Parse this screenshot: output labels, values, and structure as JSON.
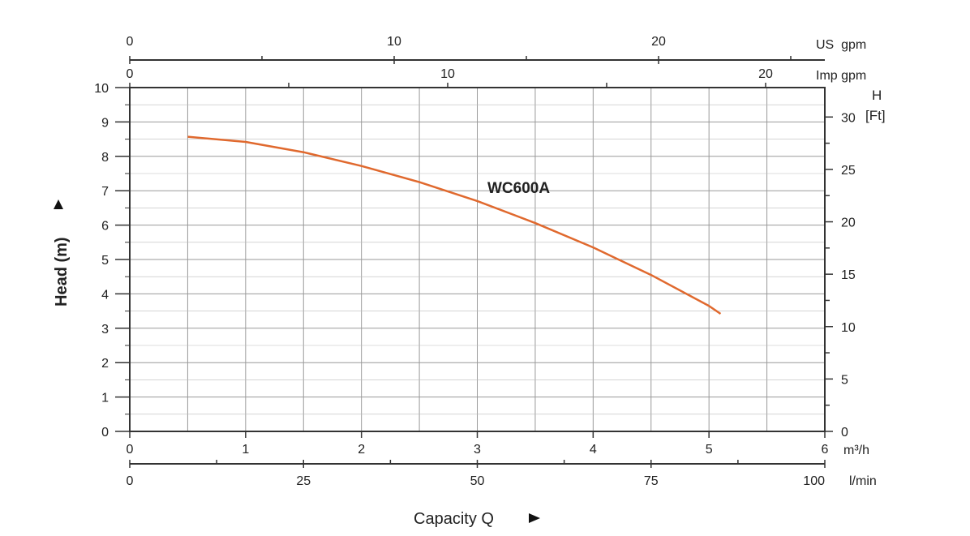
{
  "chart_data": {
    "type": "line",
    "series": [
      {
        "name": "WC600A",
        "color": "#e0692e",
        "x": [
          0.5,
          1.0,
          1.5,
          2.0,
          2.5,
          3.0,
          3.5,
          4.0,
          4.5,
          5.0,
          5.1
        ],
        "y": [
          8.57,
          8.42,
          8.12,
          7.72,
          7.25,
          6.7,
          6.06,
          5.35,
          4.55,
          3.65,
          3.42
        ]
      }
    ],
    "xlabel": "Capacity Q",
    "ylabel": "Head (m)",
    "xlim": [
      0,
      6
    ],
    "ylim": [
      0,
      10
    ],
    "x_ticks": [
      "0",
      "1",
      "2",
      "3",
      "4",
      "5",
      "6"
    ],
    "x_unit": "m³/h",
    "y_ticks": [
      "0",
      "1",
      "2",
      "3",
      "4",
      "5",
      "6",
      "7",
      "8",
      "9",
      "10"
    ],
    "grid": true,
    "secondary_axes": {
      "us_gpm": {
        "label": "US  gpm",
        "ticks": [
          "0",
          "10",
          "20"
        ]
      },
      "imp_gpm": {
        "label": "Imp gpm",
        "ticks": [
          "0",
          "10",
          "20"
        ]
      },
      "lpm": {
        "label": "l/min",
        "ticks": [
          "0",
          "25",
          "50",
          "75",
          "100"
        ]
      },
      "ft": {
        "label_top": "H",
        "label_unit": "[Ft]",
        "ticks": [
          "0",
          "5",
          "10",
          "15",
          "20",
          "25",
          "30"
        ]
      }
    }
  }
}
